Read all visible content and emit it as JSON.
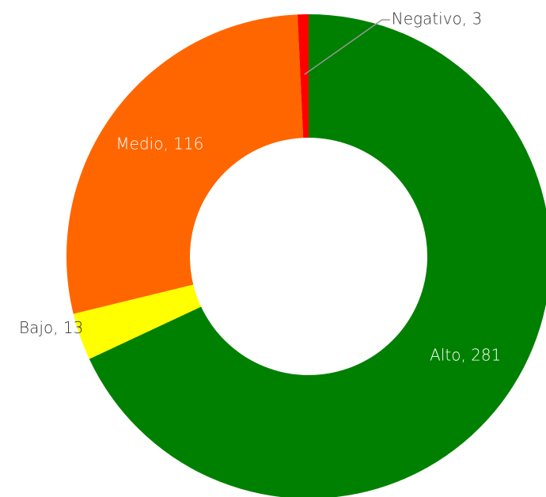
{
  "chart_data": {
    "type": "donut",
    "categories": [
      "Alto",
      "Bajo",
      "Medio",
      "Negativo"
    ],
    "values": [
      281,
      13,
      116,
      3
    ],
    "value_labels": [
      "Alto, 281",
      "Bajo, 13",
      "Medio, 116",
      "Negativo, 3"
    ],
    "colors": [
      "#008000",
      "#ffff00",
      "#ff6600",
      "#ff0000"
    ]
  }
}
